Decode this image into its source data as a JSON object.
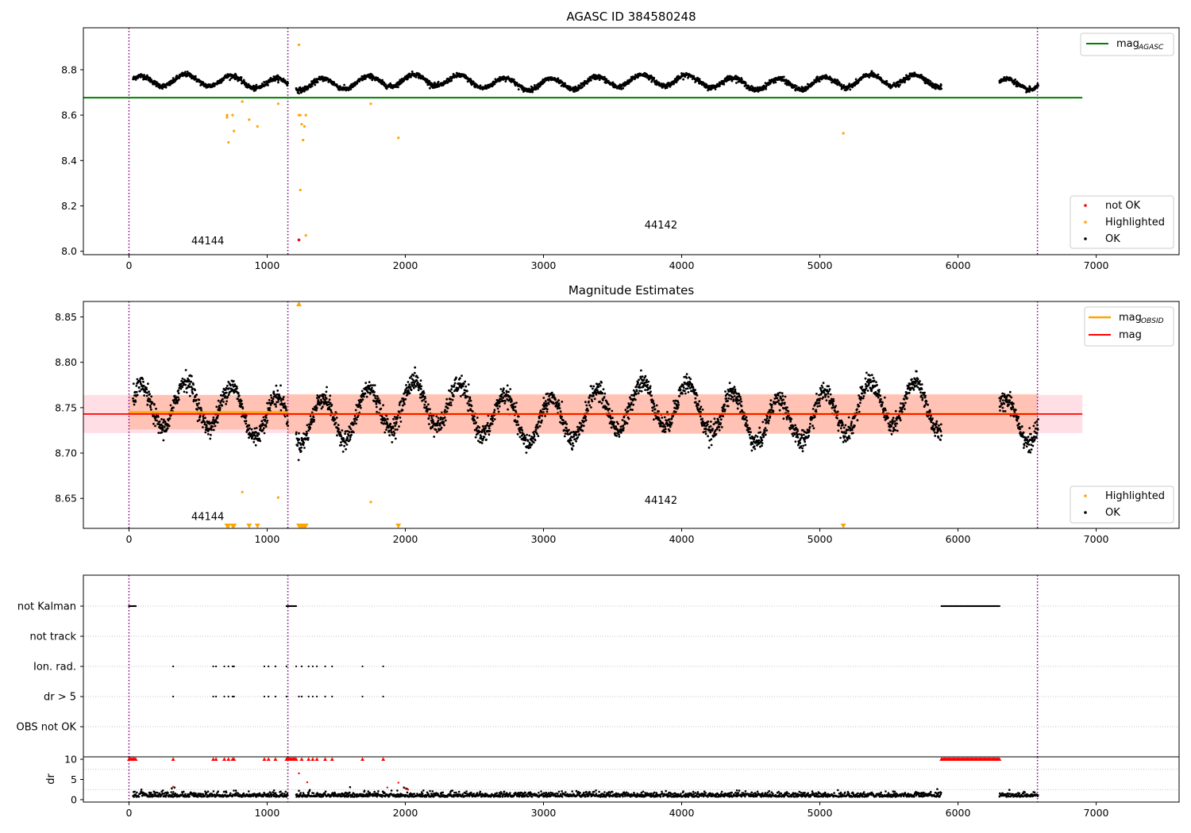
{
  "figure": {
    "colors": {
      "ok": "#000000",
      "highlighted": "#ffa500",
      "not_ok": "#ff0000",
      "mag_agasc": "#008000",
      "mag": "#ff0000",
      "mag_obsid": "#ffa500",
      "obsid_boundary": "#800080",
      "band_mag": "#ffc0cb",
      "band_obsid": "#ffa07a"
    }
  },
  "chart_data": [
    {
      "type": "scatter",
      "title": "AGASC ID 384580248",
      "xlabel": "",
      "ylabel": "",
      "xlim": [
        -330,
        7600
      ],
      "ylim": [
        7.985,
        8.985
      ],
      "xticks": [
        0,
        1000,
        2000,
        3000,
        4000,
        5000,
        6000,
        7000
      ],
      "yticks": [
        8.0,
        8.2,
        8.4,
        8.6,
        8.8
      ],
      "ytick_labels": [
        "8.0",
        "8.2",
        "8.4",
        "8.6",
        "8.8"
      ],
      "obsid_boundaries": [
        0,
        1150,
        6575
      ],
      "obsid_labels": [
        {
          "text": "44144",
          "x": 570,
          "y": 8.03
        },
        {
          "text": "44142",
          "x": 3850,
          "y": 8.1
        }
      ],
      "hlines": [
        {
          "name": "mag_agasc",
          "y": 8.677,
          "x": [
            -330,
            6900
          ]
        }
      ],
      "series": [
        {
          "name": "OK",
          "kind": "trend",
          "segments": [
            [
              30,
              1150
            ],
            [
              1210,
              5880
            ],
            [
              6300,
              6580
            ]
          ],
          "base": 8.745,
          "amplitude": 0.025,
          "period": 330,
          "noise": 0.012
        },
        {
          "name": "Highlighted",
          "points": [
            [
              710,
              8.6
            ],
            [
              710,
              8.59
            ],
            [
              720,
              8.48
            ],
            [
              760,
              8.53
            ],
            [
              750,
              8.6
            ],
            [
              820,
              8.66
            ],
            [
              870,
              8.58
            ],
            [
              930,
              8.55
            ],
            [
              1080,
              8.65
            ],
            [
              1230,
              8.91
            ],
            [
              1230,
              8.6
            ],
            [
              1240,
              8.6
            ],
            [
              1250,
              8.56
            ],
            [
              1260,
              8.49
            ],
            [
              1270,
              8.55
            ],
            [
              1280,
              8.6
            ],
            [
              1240,
              8.27
            ],
            [
              1280,
              8.07
            ],
            [
              1750,
              8.65
            ],
            [
              1950,
              8.5
            ],
            [
              5170,
              8.52
            ]
          ]
        },
        {
          "name": "not OK",
          "points": [
            [
              1230,
              8.05
            ]
          ]
        }
      ],
      "legend_upper": {
        "position": "top-right",
        "entries": [
          {
            "label": "mag",
            "sub": "AGASC"
          }
        ]
      },
      "legend_lower": {
        "position": "lower-right",
        "entries": [
          "not OK",
          "Highlighted",
          "OK"
        ]
      }
    },
    {
      "type": "scatter",
      "title": "Magnitude Estimates",
      "xlabel": "",
      "ylabel": "",
      "xlim": [
        -330,
        7600
      ],
      "ylim": [
        8.617,
        8.867
      ],
      "xticks": [
        0,
        1000,
        2000,
        3000,
        4000,
        5000,
        6000,
        7000
      ],
      "yticks": [
        8.65,
        8.7,
        8.75,
        8.8,
        8.85
      ],
      "ytick_labels": [
        "8.65",
        "8.70",
        "8.75",
        "8.80",
        "8.85"
      ],
      "obsid_boundaries": [
        0,
        1150,
        6575
      ],
      "obsid_labels": [
        {
          "text": "44144",
          "x": 570,
          "y": 8.626
        },
        {
          "text": "44142",
          "x": 3850,
          "y": 8.644
        }
      ],
      "mag": {
        "value": 8.743,
        "x": [
          -330,
          6900
        ],
        "band": [
          8.722,
          8.764
        ]
      },
      "mag_obsid": [
        {
          "x": [
            0,
            1150
          ],
          "value": 8.745,
          "band": [
            8.726,
            8.764
          ]
        },
        {
          "x": [
            1150,
            6575
          ],
          "value": 8.743,
          "band": [
            8.721,
            8.765
          ]
        }
      ],
      "series": [
        {
          "name": "OK",
          "kind": "trend",
          "segments": [
            [
              30,
              1150
            ],
            [
              1210,
              5880
            ],
            [
              6300,
              6580
            ]
          ],
          "base": 8.745,
          "amplitude": 0.025,
          "period": 330,
          "noise": 0.012
        },
        {
          "name": "Highlighted",
          "points": [
            [
              820,
              8.657
            ],
            [
              1080,
              8.651
            ],
            [
              1750,
              8.646
            ]
          ],
          "clipped_low_x": [
            710,
            720,
            750,
            760,
            870,
            930,
            1230,
            1240,
            1250,
            1260,
            1270,
            1280,
            1950,
            5170
          ],
          "clipped_high_x": [
            1230
          ]
        }
      ],
      "legend_upper": {
        "position": "top-right",
        "entries": [
          {
            "label": "mag",
            "sub": "OBSID"
          },
          {
            "label": "mag",
            "sub": ""
          }
        ]
      },
      "legend_lower": {
        "position": "lower-right",
        "entries": [
          "Highlighted",
          "OK"
        ]
      }
    },
    {
      "type": "scatter",
      "title": "",
      "xlabel": "",
      "ylabel": "",
      "xlim": [
        -330,
        7600
      ],
      "categories": [
        "not Kalman",
        "not track",
        "Ion. rad.",
        "dr > 5",
        "OBS not OK"
      ],
      "obsid_boundaries": [
        0,
        1150,
        6575
      ],
      "flags": {
        "not Kalman": {
          "ranges": [
            [
              0,
              50
            ],
            [
              1140,
              1210
            ],
            [
              5880,
              6300
            ]
          ]
        },
        "not track": {
          "ranges": []
        },
        "Ion. rad.": {
          "points": [
            320,
            610,
            630,
            690,
            720,
            750,
            760,
            980,
            1010,
            1060,
            1140,
            1210,
            1250,
            1300,
            1330,
            1360,
            1420,
            1470,
            1690,
            1840
          ]
        },
        "dr > 5": {
          "points": [
            320,
            610,
            630,
            690,
            720,
            750,
            760,
            980,
            1010,
            1060,
            1140,
            1230,
            1250,
            1300,
            1330,
            1360,
            1420,
            1470,
            1690,
            1840
          ]
        },
        "OBS not OK": {
          "points": []
        }
      }
    },
    {
      "type": "scatter",
      "title": "",
      "xlabel": "",
      "ylabel": "dr",
      "xlim": [
        -330,
        7600
      ],
      "ylim": [
        -0.6,
        10.6
      ],
      "yticks": [
        0,
        5,
        10
      ],
      "ytick_labels": [
        "0",
        "5",
        "10"
      ],
      "xticks": [
        0,
        1000,
        2000,
        3000,
        4000,
        5000,
        6000,
        7000
      ],
      "obsid_boundaries": [
        0,
        1150,
        6575
      ],
      "series": [
        {
          "name": "OK",
          "kind": "noise",
          "segments": [
            [
              30,
              1150
            ],
            [
              1210,
              5880
            ],
            [
              6300,
              6580
            ]
          ],
          "base": 1.0,
          "spread": 0.8
        },
        {
          "name": "OK bumps",
          "points": [
            [
              310,
              2.8
            ],
            [
              330,
              3.0
            ],
            [
              700,
              2.0
            ],
            [
              1050,
              2.3
            ],
            [
              1230,
              2.2
            ],
            [
              1300,
              1.8
            ],
            [
              1990,
              3.0
            ],
            [
              2010,
              2.7
            ],
            [
              3380,
              2.3
            ],
            [
              4400,
              2.3
            ],
            [
              5850,
              2.6
            ]
          ]
        },
        {
          "name": "not OK",
          "points": [
            [
              320,
              3.2
            ],
            [
              1230,
              6.5
            ],
            [
              1290,
              4.3
            ],
            [
              1870,
              3.0
            ],
            [
              1950,
              4.2
            ],
            [
              2000,
              2.8
            ],
            [
              2020,
              2.5
            ]
          ]
        },
        {
          "name": "not OK clipped",
          "ranges": [
            [
              0,
              50
            ],
            [
              1140,
              1210
            ],
            [
              5880,
              6300
            ]
          ],
          "points_x": [
            320,
            610,
            630,
            690,
            720,
            750,
            760,
            980,
            1010,
            1060,
            1250,
            1300,
            1330,
            1360,
            1420,
            1470,
            1690,
            1840
          ],
          "y": 10
        }
      ]
    }
  ],
  "x_tick_labels": [
    "0",
    "1000",
    "2000",
    "3000",
    "4000",
    "5000",
    "6000",
    "7000"
  ]
}
